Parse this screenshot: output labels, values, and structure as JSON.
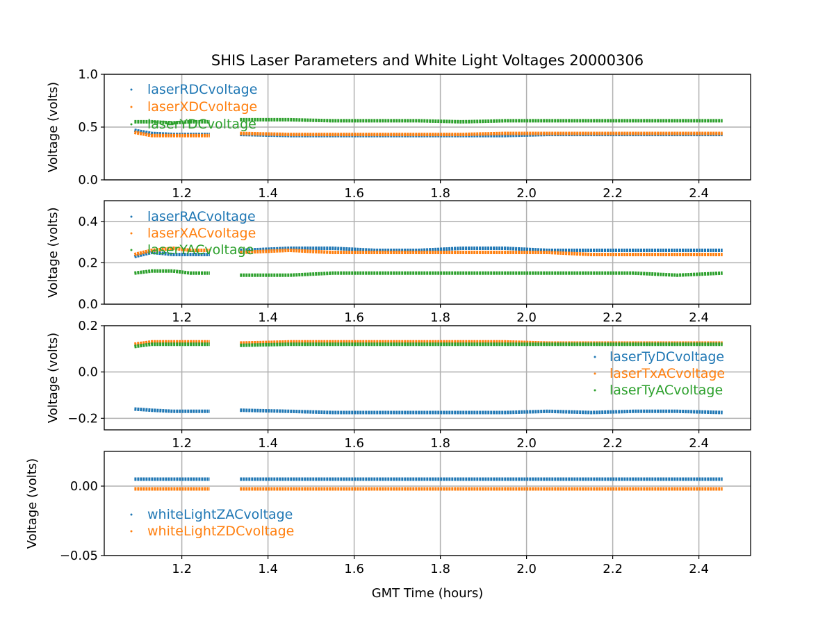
{
  "chart_data": {
    "type": "scatter",
    "title": "SHIS Laser Parameters and White Light Voltages 20000306",
    "xlabel": "GMT Time (hours)",
    "xlim": [
      1.02,
      2.52
    ],
    "xticks": [
      1.2,
      1.4,
      1.6,
      1.8,
      2.0,
      2.2,
      2.4
    ],
    "xtick_labels": [
      "1.2",
      "1.4",
      "1.6",
      "1.8",
      "2.0",
      "2.2",
      "2.4"
    ],
    "grid": true,
    "x": [
      1.09,
      1.13,
      1.18,
      1.22,
      1.265,
      null,
      1.335,
      1.45,
      1.55,
      1.65,
      1.75,
      1.85,
      1.95,
      2.05,
      2.15,
      2.25,
      2.35,
      2.455
    ],
    "colors": {
      "blue": "#1f77b4",
      "orange": "#ff7f0e",
      "green": "#2ca02c"
    },
    "panels": [
      {
        "ylabel": "Voltage (volts)",
        "ylim": [
          0,
          1
        ],
        "yticks": [
          0,
          0.5,
          1.0
        ],
        "ytick_labels": [
          "0.0",
          "0.5",
          "1.0"
        ],
        "legend_placement": "upper-left",
        "series": [
          {
            "name": "laserRDCvoltage",
            "color": "#1f77b4",
            "values": [
              0.47,
              0.44,
              0.43,
              0.43,
              0.43,
              null,
              0.43,
              0.42,
              0.42,
              0.42,
              0.42,
              0.42,
              0.42,
              0.43,
              0.43,
              0.43,
              0.43,
              0.43
            ]
          },
          {
            "name": "laserXDCvoltage",
            "color": "#ff7f0e",
            "values": [
              0.45,
              0.42,
              0.42,
              0.42,
              0.42,
              null,
              0.44,
              0.43,
              0.43,
              0.43,
              0.43,
              0.43,
              0.44,
              0.44,
              0.44,
              0.44,
              0.44,
              0.44
            ]
          },
          {
            "name": "laserYDCvoltage",
            "color": "#2ca02c",
            "values": [
              0.55,
              0.55,
              0.54,
              0.55,
              0.55,
              null,
              0.57,
              0.57,
              0.56,
              0.56,
              0.56,
              0.55,
              0.56,
              0.56,
              0.56,
              0.56,
              0.56,
              0.56
            ]
          }
        ]
      },
      {
        "ylabel": "Voltage (volts)",
        "ylim": [
          0,
          0.5
        ],
        "yticks": [
          0,
          0.2,
          0.4
        ],
        "ytick_labels": [
          "0.0",
          "0.2",
          "0.4"
        ],
        "legend_placement": "upper-left",
        "series": [
          {
            "name": "laserRACvoltage",
            "color": "#1f77b4",
            "values": [
              0.23,
              0.25,
              0.24,
              0.24,
              0.24,
              null,
              0.26,
              0.27,
              0.27,
              0.26,
              0.26,
              0.27,
              0.27,
              0.26,
              0.26,
              0.26,
              0.26,
              0.26
            ]
          },
          {
            "name": "laserXACvoltage",
            "color": "#ff7f0e",
            "values": [
              0.24,
              0.26,
              0.27,
              0.26,
              0.26,
              null,
              0.25,
              0.26,
              0.25,
              0.25,
              0.25,
              0.25,
              0.25,
              0.25,
              0.24,
              0.24,
              0.24,
              0.24
            ]
          },
          {
            "name": "laserYACvoltage",
            "color": "#2ca02c",
            "values": [
              0.15,
              0.16,
              0.16,
              0.15,
              0.15,
              null,
              0.14,
              0.14,
              0.15,
              0.15,
              0.15,
              0.15,
              0.15,
              0.15,
              0.15,
              0.15,
              0.14,
              0.15
            ]
          }
        ]
      },
      {
        "ylabel": "Voltage (volts)",
        "ylim": [
          -0.25,
          0.2
        ],
        "yticks": [
          -0.2,
          0.0,
          0.2
        ],
        "ytick_labels": [
          "−0.2",
          "0.0",
          "0.2"
        ],
        "legend_placement": "center-right",
        "series": [
          {
            "name": "laserTyDCvoltage",
            "color": "#1f77b4",
            "values": [
              -0.16,
              -0.165,
              -0.17,
              -0.17,
              -0.17,
              null,
              -0.165,
              -0.17,
              -0.175,
              -0.175,
              -0.175,
              -0.175,
              -0.175,
              -0.17,
              -0.175,
              -0.17,
              -0.17,
              -0.175
            ]
          },
          {
            "name": "laserTxACvoltage",
            "color": "#ff7f0e",
            "values": [
              0.12,
              0.13,
              0.13,
              0.13,
              0.13,
              null,
              0.125,
              0.13,
              0.13,
              0.13,
              0.13,
              0.13,
              0.13,
              0.125,
              0.125,
              0.125,
              0.125,
              0.125
            ]
          },
          {
            "name": "laserTyACvoltage",
            "color": "#2ca02c",
            "values": [
              0.11,
              0.12,
              0.12,
              0.12,
              0.12,
              null,
              0.115,
              0.12,
              0.12,
              0.12,
              0.12,
              0.12,
              0.12,
              0.12,
              0.12,
              0.12,
              0.12,
              0.12
            ]
          }
        ]
      },
      {
        "ylabel": "Voltage (volts)",
        "ylim": [
          -0.05,
          0.025
        ],
        "yticks": [
          -0.05,
          0.0
        ],
        "ytick_labels": [
          "−0.05",
          "0.00"
        ],
        "legend_placement": "lower-left",
        "series": [
          {
            "name": "whiteLightZACvoltage",
            "color": "#1f77b4",
            "values": [
              0.005,
              0.005,
              0.005,
              0.005,
              0.005,
              null,
              0.005,
              0.005,
              0.005,
              0.005,
              0.005,
              0.005,
              0.005,
              0.005,
              0.005,
              0.005,
              0.005,
              0.005
            ]
          },
          {
            "name": "whiteLightZDCvoltage",
            "color": "#ff7f0e",
            "values": [
              -0.002,
              -0.002,
              -0.002,
              -0.002,
              -0.002,
              null,
              -0.002,
              -0.002,
              -0.002,
              -0.002,
              -0.002,
              -0.002,
              -0.002,
              -0.002,
              -0.002,
              -0.002,
              -0.002,
              -0.002
            ]
          }
        ]
      }
    ]
  }
}
